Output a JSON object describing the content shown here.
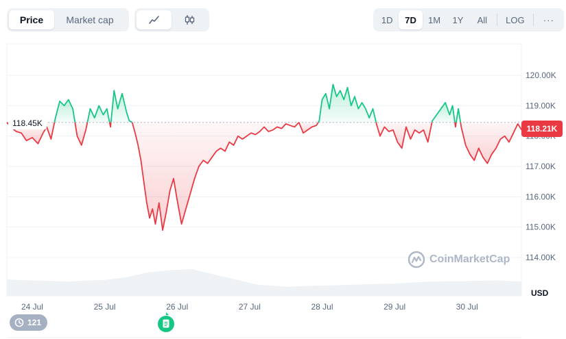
{
  "toolbar": {
    "metric_tabs": [
      {
        "label": "Price",
        "active": true
      },
      {
        "label": "Market cap",
        "active": false
      }
    ],
    "chart_type_tabs": [
      {
        "icon": "line-chart-icon",
        "active": true
      },
      {
        "icon": "candlestick-chart-icon",
        "active": false
      }
    ],
    "range_tabs": [
      {
        "label": "1D",
        "active": false
      },
      {
        "label": "7D",
        "active": true
      },
      {
        "label": "1M",
        "active": false
      },
      {
        "label": "1Y",
        "active": false
      },
      {
        "label": "All",
        "active": false
      }
    ],
    "log_label": "LOG",
    "more_label": "···"
  },
  "reference_price_label": "118.45K",
  "current_price_label": "118.21K",
  "watermark": "CoinMarketCap",
  "events_count": "121",
  "colors": {
    "up": "#16c784",
    "down": "#ea3943",
    "grid": "#eff2f5",
    "volume": "#eff2f5"
  },
  "chart_data": {
    "type": "line",
    "unit_label": "USD",
    "reference_value": 118.45,
    "ylim": [
      113.0,
      120.6
    ],
    "y_ticks": [
      114,
      115,
      116,
      117,
      118,
      119,
      120
    ],
    "y_tick_labels": [
      "114.00K",
      "115.00K",
      "116.00K",
      "117.00K",
      "118.00K",
      "119.00K",
      "120.00K"
    ],
    "xlim": [
      23.65,
      30.75
    ],
    "x_ticks": [
      24,
      25,
      26,
      27,
      28,
      29,
      30
    ],
    "x_tick_labels": [
      "24 Jul",
      "25 Jul",
      "26 Jul",
      "27 Jul",
      "28 Jul",
      "29 Jul",
      "30 Jul"
    ],
    "series": [
      {
        "x": [
          23.65,
          23.7,
          23.78,
          23.85,
          23.92,
          24.0,
          24.08,
          24.15,
          24.2,
          24.26,
          24.32,
          24.38,
          24.44,
          24.5,
          24.56,
          24.62,
          24.68,
          24.74,
          24.8,
          24.86,
          24.92,
          24.98,
          25.03,
          25.08,
          25.13,
          25.18,
          25.24,
          25.3,
          25.34,
          25.38,
          25.42,
          25.46,
          25.5,
          25.54,
          25.58,
          25.62,
          25.66,
          25.7,
          25.75,
          25.8,
          25.85,
          25.9,
          25.95,
          26.0,
          26.06,
          26.12,
          26.18,
          26.24,
          26.3,
          26.36,
          26.42,
          26.48,
          26.54,
          26.6,
          26.66,
          26.72,
          26.78,
          26.84,
          26.9,
          26.96,
          27.02,
          27.08,
          27.14,
          27.2,
          27.26,
          27.32,
          27.38,
          27.44,
          27.5,
          27.56,
          27.62,
          27.68,
          27.74,
          27.8,
          27.86,
          27.92,
          27.96,
          28.0,
          28.05,
          28.1,
          28.15,
          28.2,
          28.25,
          28.3,
          28.35,
          28.4,
          28.45,
          28.5,
          28.55,
          28.6,
          28.65,
          28.7,
          28.75,
          28.8,
          28.86,
          28.92,
          28.98,
          29.04,
          29.1,
          29.16,
          29.22,
          29.28,
          29.34,
          29.4,
          29.46,
          29.52,
          29.58,
          29.64,
          29.7,
          29.76,
          29.8,
          29.84,
          29.88,
          29.92,
          29.98,
          30.04,
          30.1,
          30.16,
          30.22,
          30.28,
          30.34,
          30.4,
          30.46,
          30.52,
          30.58,
          30.64,
          30.7,
          30.75
        ],
        "y": [
          118.45,
          118.3,
          118.15,
          118.1,
          117.85,
          117.95,
          117.75,
          118.1,
          118.3,
          117.9,
          118.6,
          119.15,
          119.0,
          119.2,
          118.9,
          118.0,
          117.7,
          118.2,
          118.9,
          118.6,
          119.0,
          118.7,
          118.9,
          118.3,
          119.5,
          118.9,
          119.4,
          118.8,
          118.5,
          118.45,
          118.1,
          117.7,
          117.2,
          116.5,
          115.8,
          115.3,
          115.6,
          115.1,
          115.8,
          114.9,
          115.5,
          116.2,
          116.6,
          115.9,
          115.1,
          115.6,
          116.1,
          116.6,
          117.0,
          117.2,
          117.1,
          117.3,
          117.5,
          117.6,
          117.5,
          117.8,
          117.7,
          118.0,
          117.9,
          118.0,
          118.1,
          118.05,
          118.15,
          118.3,
          118.15,
          118.2,
          118.3,
          118.25,
          118.4,
          118.35,
          118.3,
          118.45,
          118.1,
          118.2,
          118.3,
          118.35,
          118.5,
          119.2,
          119.4,
          118.9,
          119.7,
          119.3,
          119.5,
          119.2,
          119.6,
          119.0,
          119.3,
          118.9,
          119.1,
          118.9,
          118.6,
          118.9,
          118.4,
          118.0,
          118.3,
          118.15,
          118.2,
          117.8,
          117.6,
          118.3,
          117.9,
          118.2,
          118.1,
          118.2,
          117.8,
          118.5,
          118.7,
          118.9,
          119.1,
          118.7,
          119.0,
          118.3,
          118.9,
          118.3,
          117.7,
          117.4,
          117.2,
          117.6,
          117.3,
          117.1,
          117.4,
          117.6,
          117.9,
          118.0,
          117.8,
          118.1,
          118.4,
          118.21
        ]
      }
    ],
    "volume": {
      "x": [
        23.65,
        24.0,
        24.5,
        25.0,
        25.3,
        25.6,
        25.9,
        26.2,
        26.5,
        26.8,
        27.1,
        27.5,
        28.0,
        28.5,
        29.0,
        29.5,
        30.0,
        30.4,
        30.75
      ],
      "values": [
        0.8,
        0.75,
        0.7,
        0.78,
        0.9,
        1.15,
        1.25,
        1.3,
        1.05,
        0.8,
        0.55,
        0.45,
        0.5,
        0.55,
        0.6,
        0.7,
        0.72,
        0.75,
        0.7
      ]
    }
  }
}
